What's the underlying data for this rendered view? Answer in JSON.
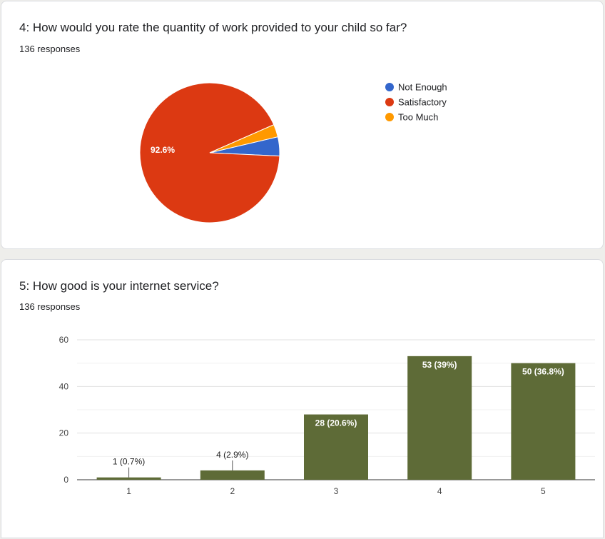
{
  "questions": [
    {
      "title": "4: How would you rate the quantity of work provided to your child so far?",
      "responses": "136 responses"
    },
    {
      "title": "5: How good is your internet service?",
      "responses": "136 responses"
    }
  ],
  "chart_data": [
    {
      "type": "pie",
      "slices": [
        {
          "label": "Not Enough",
          "percent": 4.4,
          "color": "#3366cc"
        },
        {
          "label": "Satisfactory",
          "percent": 92.6,
          "color": "#dc3912",
          "data_label": "92.6%"
        },
        {
          "label": "Too Much",
          "percent": 2.9,
          "color": "#ff9900"
        }
      ],
      "legend_position": "right"
    },
    {
      "type": "bar",
      "categories": [
        "1",
        "2",
        "3",
        "4",
        "5"
      ],
      "values": [
        1,
        4,
        28,
        53,
        50
      ],
      "data_labels": [
        "1 (0.7%)",
        "4 (2.9%)",
        "28 (20.6%)",
        "53 (39%)",
        "50 (36.8%)"
      ],
      "ylim": [
        0,
        60
      ],
      "yticks": [
        "0",
        "20",
        "40",
        "60"
      ],
      "grid": true,
      "color": "#5e6b37"
    }
  ]
}
